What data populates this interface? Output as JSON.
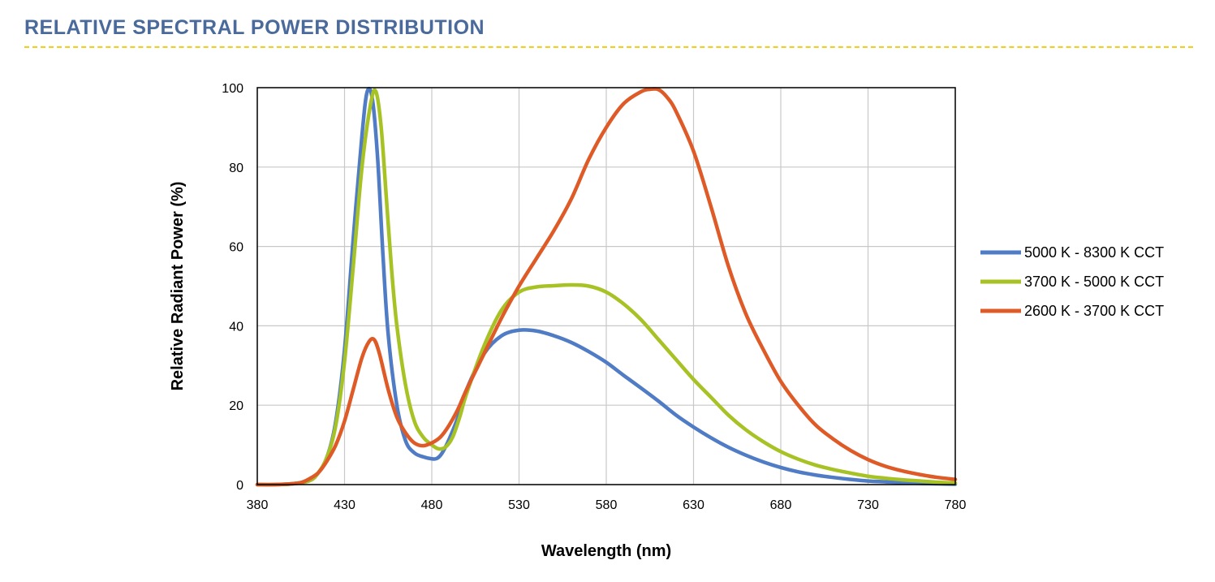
{
  "header": {
    "title": "RELATIVE SPECTRAL POWER DISTRIBUTION",
    "rule_color": "#f2cd1a"
  },
  "chart_data": {
    "type": "line",
    "title": "",
    "xlabel": "Wavelength (nm)",
    "ylabel": "Relative Radiant Power (%)",
    "xlim": [
      380,
      780
    ],
    "ylim": [
      0,
      100
    ],
    "x_ticks": [
      "380",
      "430",
      "480",
      "530",
      "580",
      "630",
      "680",
      "730",
      "780"
    ],
    "y_ticks": [
      "0",
      "20",
      "40",
      "60",
      "80",
      "100"
    ],
    "grid": true,
    "legend_position": "right",
    "series": [
      {
        "name": "5000 K - 8300 K CCT",
        "color": "#4f7cc4",
        "x": [
          380,
          390,
          400,
          410,
          415,
          420,
          425,
          430,
          435,
          440,
          443,
          446,
          449,
          452,
          455,
          460,
          465,
          470,
          475,
          480,
          483,
          486,
          490,
          495,
          500,
          510,
          520,
          530,
          540,
          550,
          560,
          570,
          580,
          590,
          600,
          610,
          620,
          630,
          640,
          650,
          660,
          670,
          680,
          690,
          700,
          710,
          720,
          730,
          740,
          750,
          760,
          770,
          780
        ],
        "y": [
          0,
          0,
          0.2,
          1,
          3,
          7,
          16,
          34,
          62,
          88,
          99,
          97,
          82,
          58,
          38,
          20,
          11,
          8,
          7,
          6.5,
          6.6,
          8,
          11.5,
          17,
          24,
          33,
          37.5,
          38.9,
          38.7,
          37.5,
          35.8,
          33.5,
          30.8,
          27.5,
          24.3,
          21,
          17.5,
          14.5,
          11.8,
          9.4,
          7.4,
          5.7,
          4.3,
          3.2,
          2.4,
          1.8,
          1.3,
          0.9,
          0.7,
          0.5,
          0.3,
          0.2,
          0.1
        ]
      },
      {
        "name": "3700 K - 5000 K CCT",
        "color": "#a7c224",
        "x": [
          380,
          390,
          400,
          410,
          415,
          420,
          425,
          430,
          435,
          440,
          445,
          448,
          451,
          454,
          457,
          460,
          465,
          470,
          475,
          480,
          484,
          488,
          492,
          496,
          500,
          510,
          520,
          530,
          540,
          550,
          560,
          570,
          580,
          590,
          600,
          610,
          620,
          630,
          640,
          650,
          660,
          670,
          680,
          690,
          700,
          710,
          720,
          730,
          740,
          750,
          760,
          770,
          780
        ],
        "y": [
          0,
          0,
          0.2,
          1,
          3,
          7,
          15,
          31,
          55,
          80,
          96,
          99,
          90,
          72,
          54,
          40,
          25,
          16,
          12,
          10,
          9,
          9.5,
          12,
          17,
          23,
          35,
          44,
          48.5,
          49.8,
          50.1,
          50.3,
          50,
          48.5,
          45.5,
          41.5,
          36.5,
          31.5,
          26.5,
          22,
          17.5,
          13.8,
          10.8,
          8.3,
          6.4,
          4.9,
          3.8,
          2.9,
          2.1,
          1.6,
          1.2,
          0.9,
          0.6,
          0.4
        ]
      },
      {
        "name": "2600 K - 3700 K CCT",
        "color": "#de5a26",
        "x": [
          380,
          390,
          400,
          405,
          410,
          415,
          420,
          425,
          430,
          435,
          440,
          444,
          447,
          450,
          455,
          460,
          465,
          470,
          475,
          480,
          485,
          490,
          495,
          500,
          510,
          520,
          530,
          540,
          550,
          560,
          570,
          580,
          590,
          600,
          605,
          610,
          615,
          620,
          630,
          640,
          650,
          660,
          670,
          680,
          690,
          700,
          710,
          720,
          730,
          740,
          750,
          760,
          770,
          780
        ],
        "y": [
          0,
          0,
          0.2,
          0.5,
          1.5,
          3,
          6,
          10,
          16,
          24,
          32,
          36,
          36.5,
          33,
          24,
          17,
          13,
          10.5,
          9.8,
          10.5,
          12,
          15,
          19,
          24,
          33,
          42,
          50,
          57,
          64,
          72,
          82,
          90,
          96,
          99,
          99.6,
          99.5,
          97.5,
          94,
          84,
          70,
          55,
          43,
          34,
          26,
          20,
          15,
          11.5,
          8.6,
          6.3,
          4.6,
          3.4,
          2.5,
          1.8,
          1.3
        ]
      }
    ]
  }
}
